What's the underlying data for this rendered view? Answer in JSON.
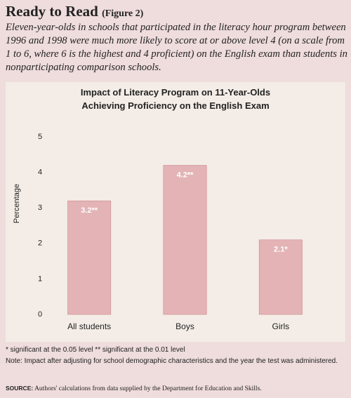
{
  "header": {
    "title": "Ready to Read",
    "figure": "(Figure 2)",
    "intro": "Eleven-year-olds in schools that participated in the literacy hour program between 1996 and 1998 were much more likely to score at or above level 4 (on a scale from 1 to 6, where 6 is the highest and 4 proficient) on the English exam than students in nonparticipating comparison schools."
  },
  "chart_data": {
    "type": "bar",
    "title": "Impact of Literacy Program on 11-Year-Olds Achieving Proficiency on the English Exam",
    "y_label": "Percentage",
    "categories": [
      "All students",
      "Boys",
      "Girls"
    ],
    "values": [
      3.2,
      4.2,
      2.1
    ],
    "value_labels": [
      "3.2**",
      "4.2**",
      "2.1*"
    ],
    "color": "#e3b3b6",
    "ylim": [
      0,
      5
    ],
    "yticks": [
      0,
      1,
      2,
      3,
      4,
      5
    ],
    "grid": false
  },
  "notes": [
    "* significant at the 0.05 level  ** significant at the 0.01 level",
    "Note: Impact after adjusting for school demographic characteristics and the year the test was administered."
  ],
  "source": {
    "label": "SOURCE:",
    "text": "Authors' calculations from data supplied by the Department for Education and Skills."
  }
}
